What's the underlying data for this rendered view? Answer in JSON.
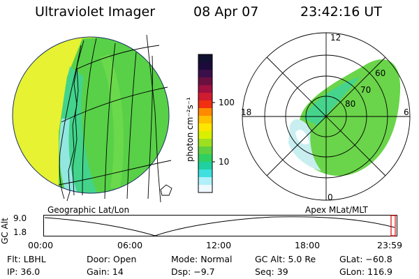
{
  "header": {
    "instrument": "Ultraviolet Imager",
    "date": "08 Apr 07",
    "time": "23:42:16 UT"
  },
  "left_panel": {
    "caption": "Geographic Lat/Lon"
  },
  "right_panel": {
    "caption": "Apex MLat/MLT",
    "mlt_labels": [
      "12",
      "18",
      "6",
      "0"
    ],
    "mlat_labels": [
      "60",
      "70",
      "80"
    ]
  },
  "colorbar": {
    "unit_label": "photon cm⁻²s⁻¹",
    "ticks": [
      "100",
      "10"
    ],
    "colors": [
      "#101030",
      "#1c0b3a",
      "#3a0f4a",
      "#6a1040",
      "#a01040",
      "#d01c30",
      "#f03010",
      "#ff8a00",
      "#ffc000",
      "#ffe600",
      "#d8f000",
      "#9ce020",
      "#60d040",
      "#30d060",
      "#20d0a0",
      "#40e0e0",
      "#b0f0f8",
      "#eef8ff"
    ]
  },
  "altitude_plot": {
    "y_label": "GC Alt",
    "y_ticks": [
      "9.0",
      "1.8"
    ],
    "x_ticks": [
      "00:00",
      "06:00",
      "12:00",
      "18:00",
      "23:59"
    ],
    "marker_color": "#e00000"
  },
  "status": {
    "filter": "Flt: LBHL",
    "door": "Door: Open",
    "mode": "Mode: Normal",
    "gc_alt": "GC Alt: 5.0 Re",
    "glat": "GLat: −60.8",
    "ip": "IP: 36.0",
    "gain": "Gain: 14",
    "dsp": "Dsp:  −9.7",
    "seq": "Seq: 39",
    "glon": "GLon: 116.9"
  }
}
